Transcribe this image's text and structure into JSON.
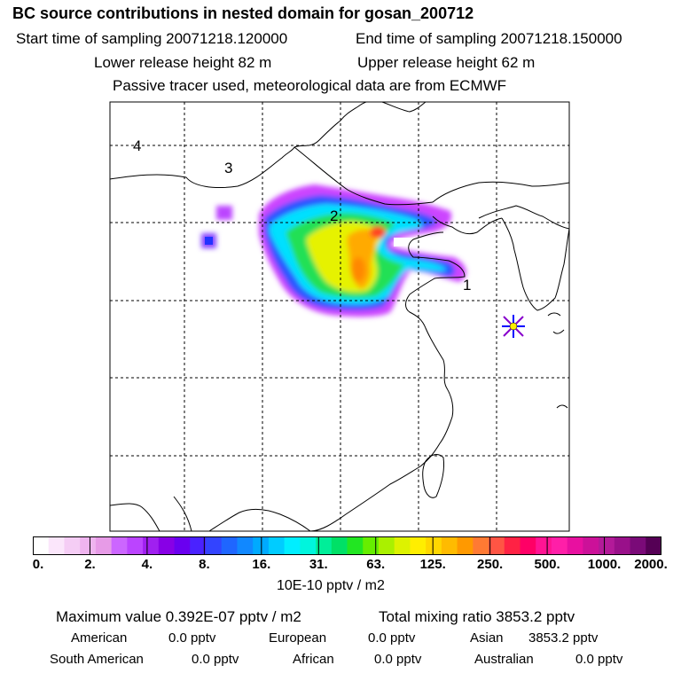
{
  "header": {
    "title": "BC  source contributions in nested domain for gosan_200712",
    "start_time": "Start time of sampling 20071218.120000",
    "end_time": "End time of sampling 20071218.150000",
    "lower_release": "Lower release height   82 m",
    "upper_release": "Upper release height   62 m",
    "tracer_note": "Passive tracer used, meteorological data are from ECMWF"
  },
  "chart_data": {
    "type": "heatmap",
    "title": "BC  source contributions in nested domain for gosan_200712",
    "map_labels": [
      "1",
      "2",
      "3",
      "4"
    ],
    "colorbar": {
      "tick_labels": [
        "0.",
        "2.",
        "4.",
        "8.",
        "16.",
        "31.",
        "63.",
        "125.",
        "250.",
        "500.",
        "1000.",
        "2000."
      ],
      "tick_values": [
        0,
        2,
        4,
        8,
        16,
        31,
        63,
        125,
        250,
        500,
        1000,
        2000
      ],
      "unit": "10E-10 pptv / m2",
      "colors": [
        "#ffffff",
        "#fbe6fb",
        "#f5cdf5",
        "#efb4ef",
        "#e79be7",
        "#cc66ff",
        "#bb44ff",
        "#a020f0",
        "#8800e6",
        "#6a00f0",
        "#4a22ff",
        "#3344ff",
        "#1f66ff",
        "#1188ff",
        "#00aaff",
        "#00ccff",
        "#00eeff",
        "#00f5dd",
        "#00ee99",
        "#00e066",
        "#22e622",
        "#66ee00",
        "#aaf000",
        "#ddf200",
        "#ffee00",
        "#ffd700",
        "#ffbb00",
        "#ff9900",
        "#ff7a33",
        "#ff5544",
        "#ff2244",
        "#ff0066",
        "#ff1493",
        "#ff1fa8",
        "#e810a0",
        "#cc1199",
        "#b31a99",
        "#99108a",
        "#7a0a78",
        "#550055"
      ]
    }
  },
  "footer": {
    "max_value": "Maximum value  0.392E-07 pptv / m2",
    "total_mixing": "Total mixing ratio     3853.2 pptv",
    "regions": [
      {
        "name": "American",
        "value": "0.0 pptv"
      },
      {
        "name": "European",
        "value": "0.0 pptv"
      },
      {
        "name": "Asian",
        "value": "3853.2 pptv"
      },
      {
        "name": "South American",
        "value": "0.0 pptv"
      },
      {
        "name": "African",
        "value": "0.0 pptv"
      },
      {
        "name": "Australian",
        "value": "0.0 pptv"
      }
    ]
  }
}
